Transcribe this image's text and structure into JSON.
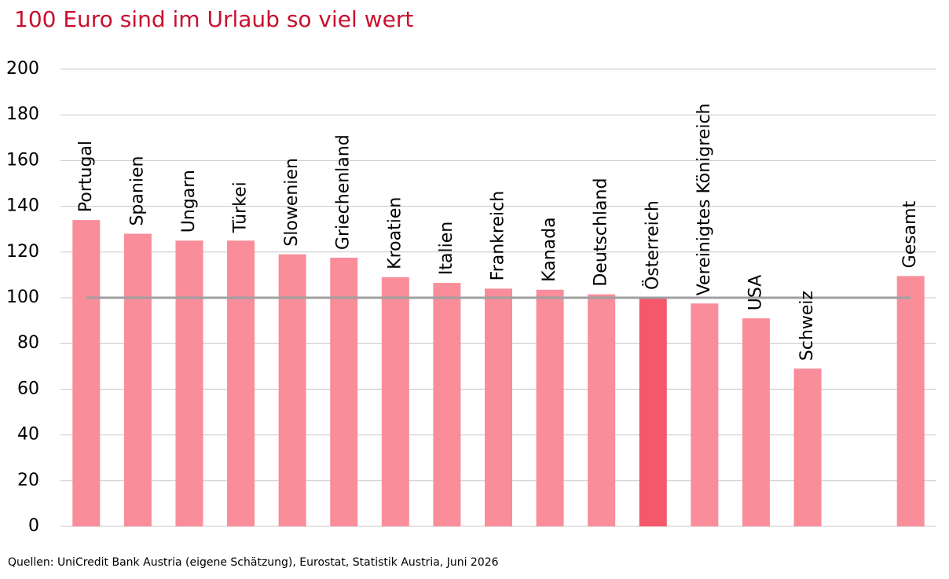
{
  "chart_data": {
    "type": "bar",
    "title": "100 Euro sind im Urlaub so viel wert",
    "source": "Quellen: UniCredit Bank Austria (eigene Schätzung), Eurostat, Statistik Austria,  Juni 2026",
    "categories": [
      "Portugal",
      "Spanien",
      "Ungarn",
      "Türkei",
      "Slowenien",
      "Griechenland",
      "Kroatien",
      "Italien",
      "Frankreich",
      "Kanada",
      "Deutschland",
      "Österreich",
      "Vereinigtes Königreich",
      "USA",
      "Schweiz",
      null,
      "Gesamt"
    ],
    "values": [
      134,
      128,
      125,
      125,
      119,
      117.5,
      109,
      106.5,
      104,
      103.5,
      101.5,
      100,
      97.5,
      91,
      69,
      null,
      109.5
    ],
    "colors": [
      "#f98d9a",
      "#f98d9a",
      "#f98d9a",
      "#f98d9a",
      "#f98d9a",
      "#f98d9a",
      "#f98d9a",
      "#f98d9a",
      "#f98d9a",
      "#f98d9a",
      "#f98d9a",
      "#f5586b",
      "#f98d9a",
      "#f98d9a",
      "#f98d9a",
      null,
      "#f98d9a"
    ],
    "reference_line": 100,
    "reference_color": "#a0a0a0",
    "ylim": [
      0,
      200
    ],
    "yticks": [
      0,
      20,
      40,
      60,
      80,
      100,
      120,
      140,
      160,
      180,
      200
    ],
    "grid": true
  }
}
